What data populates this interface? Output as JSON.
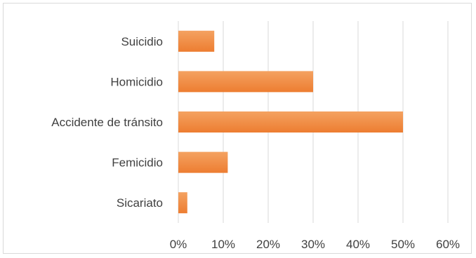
{
  "chart_data": {
    "type": "bar",
    "orientation": "horizontal",
    "categories": [
      "Suicidio",
      "Homicidio",
      "Accidente de tránsito",
      "Femicidio",
      "Sicariato"
    ],
    "values": [
      0.08,
      0.3,
      0.5,
      0.11,
      0.02
    ],
    "xlim": [
      0,
      0.6
    ],
    "x_ticks": [
      "0%",
      "10%",
      "20%",
      "30%",
      "40%",
      "50%",
      "60%"
    ],
    "grid": "vertical",
    "legend": "none",
    "bar_color": "#ed7d31",
    "bar_color_light": "#f4a261"
  }
}
